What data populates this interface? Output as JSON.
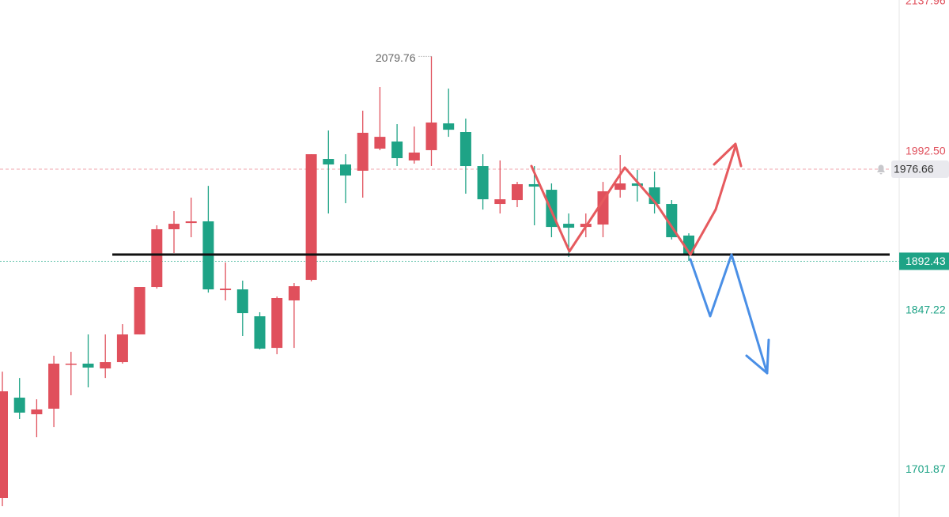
{
  "chart_data": {
    "type": "candlestick",
    "up_color": "#e0505c",
    "down_color": "#1ea386",
    "open": [
      1675.9,
      1767.7,
      1752.5,
      1757.6,
      1798.0,
      1798.8,
      1794.4,
      1800.2,
      1825.5,
      1868.9,
      1921.7,
      1927.4,
      1928.9,
      1866.0,
      1866.7,
      1842.1,
      1813.2,
      1856.6,
      1875.4,
      1986.0,
      1980.9,
      1975.2,
      1995.4,
      2001.9,
      1984.6,
      1994.0,
      2018.5,
      2010.6,
      1979.5,
      1944.8,
      1948.4,
      1962.9,
      1957.8,
      1926.7,
      1923.8,
      1926.0,
      1957.8,
      1963.6,
      1960.0,
      1944.8,
      1915.9
    ],
    "high": [
      1791.5,
      1785.7,
      1766.2,
      1806.0,
      1809.6,
      1825.5,
      1825.5,
      1834.9,
      1868.9,
      1925.3,
      1938.3,
      1950.6,
      1961.4,
      1891.3,
      1874.7,
      1845.8,
      1860.2,
      1872.5,
      1990.3,
      2012.0,
      1990.3,
      2030.1,
      2051.8,
      2017.8,
      2015.6,
      2079.76,
      2050.3,
      2022.9,
      1990.3,
      1984.6,
      1965.0,
      1979.5,
      1963.6,
      1936.1,
      1936.1,
      1965.0,
      1989.6,
      1975.9,
      1974.4,
      1948.4,
      1918.0
    ],
    "low": [
      1668.6,
      1748.2,
      1731.5,
      1740.9,
      1769.9,
      1777.1,
      1785.7,
      1798.8,
      1825.5,
      1867.4,
      1900.0,
      1914.4,
      1863.8,
      1856.6,
      1824.1,
      1811.8,
      1807.4,
      1813.2,
      1874.0,
      1936.1,
      1945.5,
      1950.6,
      1994.0,
      1979.5,
      1981.7,
      1979.5,
      2006.2,
      1954.2,
      1939.7,
      1936.1,
      1941.9,
      1925.3,
      1914.4,
      1896.4,
      1914.4,
      1914.4,
      1950.6,
      1947.0,
      1936.1,
      1912.3,
      1892.7
    ],
    "close": [
      1773.5,
      1754.0,
      1756.9,
      1798.8,
      1798.8,
      1795.2,
      1800.2,
      1825.5,
      1868.9,
      1921.7,
      1926.7,
      1928.9,
      1866.7,
      1867.4,
      1845.0,
      1812.5,
      1858.8,
      1869.6,
      1990.3,
      1980.9,
      1970.8,
      2009.9,
      2006.2,
      1986.7,
      1991.8,
      2019.3,
      2012.7,
      1979.5,
      1949.1,
      1949.1,
      1962.9,
      1960.7,
      1923.8,
      1923.1,
      1926.7,
      1956.4,
      1963.6,
      1961.4,
      1944.8,
      1914.4,
      1898.5
    ],
    "ylim": [
      1660,
      2140
    ],
    "yticks": [
      2137.96,
      {
        "value": 1992.5,
        "label": "1992.50"
      },
      1847.22,
      1701.87
    ],
    "grid": false,
    "alert_price": 1976.66,
    "last_price": 1892.43
  }
}
